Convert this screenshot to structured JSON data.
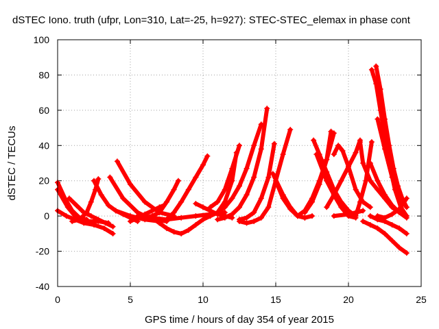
{
  "chart_data": {
    "type": "scatter",
    "title": "dSTEC Iono. truth (ufpr, Lon=310, Lat=-25, h=927): STEC-STEC_elemax in phase cont",
    "xlabel": "GPS time / hours of day 354 of year 2015",
    "ylabel": "dSTEC  / TECUs",
    "xlim": [
      0,
      25
    ],
    "ylim": [
      -40,
      100
    ],
    "xticks": [
      "0",
      "5",
      "10",
      "15",
      "20",
      "25"
    ],
    "yticks": [
      "-40",
      "-20",
      "0",
      "20",
      "40",
      "60",
      "80",
      "100"
    ],
    "grid": true,
    "marker": "+",
    "color": "#ff0000",
    "series": [
      {
        "x": [
          0.0,
          0.5,
          1.0,
          1.5,
          2.0
        ],
        "y": [
          19,
          10,
          3,
          -1,
          -2
        ]
      },
      {
        "x": [
          0.0,
          0.6,
          1.2,
          1.8,
          2.5,
          3.2,
          3.8
        ],
        "y": [
          3,
          0,
          -2,
          -4,
          -5,
          -7,
          -10
        ]
      },
      {
        "x": [
          0.0,
          0.7,
          1.4,
          2.1,
          2.8,
          3.5
        ],
        "y": [
          15,
          5,
          -2,
          -3,
          -3,
          -4
        ]
      },
      {
        "x": [
          0.8,
          1.3,
          1.8,
          2.3,
          2.8,
          3.3,
          3.8
        ],
        "y": [
          10,
          6,
          2,
          0,
          -2,
          -4,
          -6
        ]
      },
      {
        "x": [
          1.0,
          1.5,
          2.0,
          2.3,
          2.6,
          2.8
        ],
        "y": [
          -3,
          -2,
          2,
          8,
          15,
          21
        ]
      },
      {
        "x": [
          2.5,
          3.0,
          3.5,
          4.0,
          4.5,
          5.0,
          5.5
        ],
        "y": [
          20,
          12,
          6,
          3,
          1,
          -1,
          -3
        ]
      },
      {
        "x": [
          3.6,
          4.5,
          5.5,
          6.5,
          7.5
        ],
        "y": [
          22,
          10,
          2,
          -2,
          -3
        ]
      },
      {
        "x": [
          4.1,
          5.0,
          6.0,
          7.0,
          8.0
        ],
        "y": [
          31,
          18,
          8,
          2,
          0
        ]
      },
      {
        "x": [
          4.0,
          5.0,
          6.0,
          7.0
        ],
        "y": [
          3,
          0,
          -2,
          -3
        ]
      },
      {
        "x": [
          5.5,
          6.5,
          7.5,
          8.5,
          9.5,
          10.5,
          11.5
        ],
        "y": [
          0,
          -1,
          -2,
          -1,
          0,
          1,
          2
        ]
      },
      {
        "x": [
          5.0,
          5.5,
          6.0,
          6.5,
          7.0,
          7.3
        ],
        "y": [
          -3,
          -1,
          1,
          3,
          5,
          6
        ]
      },
      {
        "x": [
          6.0,
          6.5,
          7.0,
          7.5,
          8.0,
          8.3
        ],
        "y": [
          -1,
          0,
          2,
          8,
          15,
          20
        ]
      },
      {
        "x": [
          6.5,
          7.0,
          7.5,
          8.0,
          8.5,
          9.0,
          9.5,
          10.0,
          10.5,
          11.0
        ],
        "y": [
          -1,
          -4,
          -7,
          -9,
          -10,
          -8,
          -5,
          -2,
          0,
          2
        ]
      },
      {
        "x": [
          7.5,
          8.0,
          8.5,
          9.0,
          9.5,
          10.0,
          10.3
        ],
        "y": [
          -2,
          2,
          8,
          15,
          22,
          29,
          34
        ]
      },
      {
        "x": [
          9.5,
          10.0,
          10.5,
          11.0,
          11.5,
          12.0
        ],
        "y": [
          7,
          5,
          3,
          1,
          0,
          -1
        ]
      },
      {
        "x": [
          10.5,
          11.0,
          11.5,
          12.0,
          12.5,
          13.0,
          13.5,
          14.0
        ],
        "y": [
          0,
          2,
          5,
          10,
          17,
          27,
          40,
          52
        ]
      },
      {
        "x": [
          11.0,
          11.5,
          12.0,
          12.5,
          13.0,
          13.5,
          14.0,
          14.4
        ],
        "y": [
          -2,
          -1,
          1,
          5,
          12,
          22,
          38,
          61
        ]
      },
      {
        "x": [
          10.5,
          11.0,
          11.5,
          12.0,
          12.5
        ],
        "y": [
          5,
          8,
          15,
          27,
          40
        ]
      },
      {
        "x": [
          11.0,
          11.5,
          12.0,
          12.3
        ],
        "y": [
          2,
          8,
          20,
          36
        ]
      },
      {
        "x": [
          12.5,
          13.0,
          13.5,
          14.0,
          14.5,
          15.0,
          15.5,
          16.0
        ],
        "y": [
          -3,
          -4,
          -3,
          -1,
          5,
          20,
          35,
          49
        ]
      },
      {
        "x": [
          12.5,
          13.0,
          13.5,
          14.0,
          14.5,
          14.9
        ],
        "y": [
          -2,
          -1,
          2,
          10,
          22,
          41
        ]
      },
      {
        "x": [
          14.8,
          15.5,
          16.0,
          16.5,
          17.0,
          17.5
        ],
        "y": [
          24,
          12,
          5,
          0,
          -1,
          0
        ]
      },
      {
        "x": [
          15.0,
          15.5,
          16.0,
          16.5,
          17.0
        ],
        "y": [
          20,
          10,
          4,
          0,
          -1
        ]
      },
      {
        "x": [
          16.5,
          17.0,
          17.5,
          18.0,
          18.5,
          19.0
        ],
        "y": [
          0,
          3,
          10,
          20,
          32,
          47
        ]
      },
      {
        "x": [
          17.0,
          17.5,
          18.0,
          18.5,
          18.8
        ],
        "y": [
          2,
          8,
          18,
          32,
          48
        ]
      },
      {
        "x": [
          17.6,
          18.0,
          18.5,
          19.0,
          19.5,
          20.0,
          20.5
        ],
        "y": [
          43,
          35,
          25,
          15,
          8,
          3,
          0
        ]
      },
      {
        "x": [
          17.8,
          18.5,
          19.0,
          19.5,
          20.0,
          20.5
        ],
        "y": [
          35,
          20,
          12,
          5,
          0,
          -1
        ]
      },
      {
        "x": [
          19.0,
          19.3,
          19.6,
          20.0,
          20.5,
          21.0,
          21.5
        ],
        "y": [
          35,
          40,
          37,
          28,
          15,
          8,
          5
        ]
      },
      {
        "x": [
          18.5,
          19.0,
          19.5,
          20.0,
          20.5,
          20.8
        ],
        "y": [
          5,
          12,
          20,
          28,
          36,
          43
        ]
      },
      {
        "x": [
          20.5,
          20.8,
          21.2,
          21.6
        ],
        "y": [
          0,
          8,
          20,
          42
        ]
      },
      {
        "x": [
          19.0,
          20.0,
          20.5,
          21.0
        ],
        "y": [
          0,
          1,
          2,
          3
        ]
      },
      {
        "x": [
          20.8,
          21.0,
          21.5,
          22.0,
          22.5,
          23.0,
          23.5,
          24.0
        ],
        "y": [
          42,
          30,
          20,
          15,
          10,
          5,
          2,
          0
        ]
      },
      {
        "x": [
          21.6,
          21.9,
          22.2,
          22.5,
          22.8,
          23.2,
          23.6,
          24.0
        ],
        "y": [
          83,
          75,
          60,
          45,
          30,
          15,
          5,
          0
        ]
      },
      {
        "x": [
          21.9,
          22.2,
          22.5,
          22.8,
          23.1,
          23.4,
          23.7,
          24.0
        ],
        "y": [
          85,
          72,
          55,
          40,
          27,
          17,
          10,
          5
        ]
      },
      {
        "x": [
          22.0,
          22.5,
          23.0,
          23.5,
          24.0
        ],
        "y": [
          55,
          38,
          22,
          12,
          5
        ]
      },
      {
        "x": [
          21.0,
          21.5,
          22.0,
          22.5,
          23.0,
          23.5,
          24.0
        ],
        "y": [
          -3,
          -5,
          -7,
          -10,
          -14,
          -18,
          -21
        ]
      },
      {
        "x": [
          21.5,
          22.0,
          22.5,
          23.0,
          23.5,
          24.0
        ],
        "y": [
          0,
          -2,
          -3,
          -5,
          -7,
          -10
        ]
      },
      {
        "x": [
          22.0,
          22.5,
          23.0,
          23.5,
          24.0
        ],
        "y": [
          0,
          -1,
          1,
          4,
          10
        ]
      },
      {
        "x": [
          21.5,
          22.0,
          22.5,
          23.0,
          23.5,
          24.0
        ],
        "y": [
          30,
          20,
          12,
          6,
          2,
          -1
        ]
      }
    ]
  }
}
